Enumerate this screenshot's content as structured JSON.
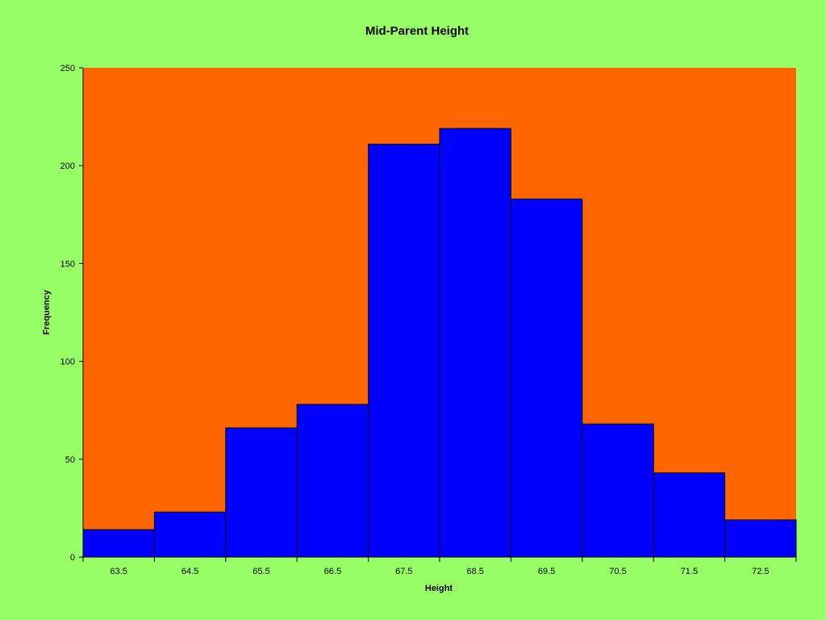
{
  "chart_data": {
    "type": "bar",
    "title": "Mid-Parent Height",
    "xlabel": "Height",
    "ylabel": "Frequency",
    "categories": [
      "63.5",
      "64.5",
      "65.5",
      "66.5",
      "67.5",
      "68.5",
      "69.5",
      "70.5",
      "71.5",
      "72.5"
    ],
    "values": [
      14,
      23,
      66,
      78,
      211,
      219,
      183,
      68,
      43,
      19
    ],
    "ylim": [
      0,
      250
    ],
    "yticks": [
      "0",
      "50",
      "100",
      "150",
      "200",
      "250"
    ],
    "grid": false,
    "legend": "none",
    "colors": {
      "background": "#99ff66",
      "plot_area": "#ff6600",
      "bar": "#0000ff",
      "bar_edge": "#000000"
    }
  }
}
